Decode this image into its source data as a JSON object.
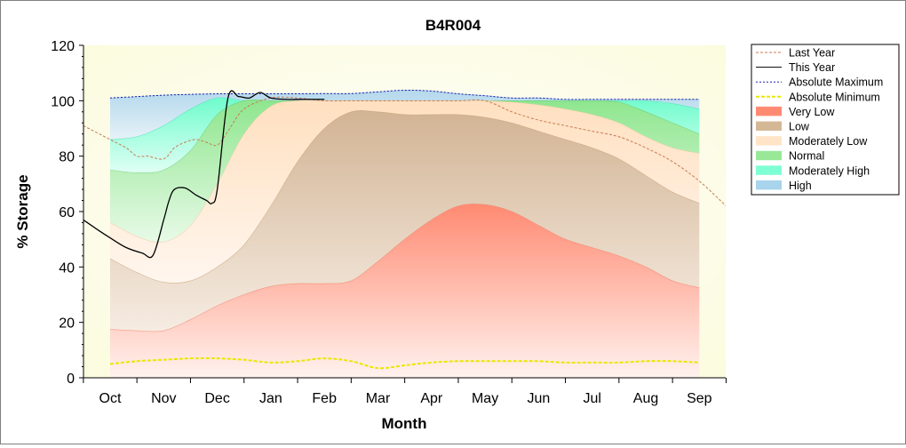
{
  "chart_data": {
    "type": "area",
    "title": "B4R004",
    "xlabel": "Month",
    "ylabel": "% Storage",
    "ylim": [
      0,
      120
    ],
    "yticks": [
      0,
      20,
      40,
      60,
      80,
      100,
      120
    ],
    "months": [
      "Oct",
      "Nov",
      "Dec",
      "Jan",
      "Feb",
      "Mar",
      "Apr",
      "May",
      "Jun",
      "Jul",
      "Aug",
      "Sep"
    ],
    "grid": false,
    "legend_position": "right",
    "bands": {
      "x": [
        0,
        0.5,
        1,
        1.5,
        2,
        2.5,
        3,
        3.5,
        4,
        4.5,
        5,
        5.5,
        6,
        6.5,
        7,
        7.5,
        8,
        8.5,
        9,
        9.5,
        10,
        10.5,
        11
      ],
      "very_low_top": [
        17.5,
        17,
        17,
        21,
        26,
        30,
        33,
        34,
        34,
        35,
        42,
        50,
        57,
        62,
        62.5,
        60,
        55,
        50,
        47,
        44,
        40,
        35,
        32.5
      ],
      "low_top": [
        43,
        38,
        34.5,
        35,
        40,
        48,
        62,
        78,
        90,
        96,
        96,
        95,
        95,
        95,
        94,
        92,
        89,
        86,
        83,
        79,
        73,
        67,
        63
      ],
      "moderately_low_top": [
        56,
        51,
        49,
        55,
        70,
        88,
        98,
        100,
        100,
        100,
        100,
        100,
        100,
        100,
        100,
        99.5,
        98.5,
        97,
        95,
        92,
        87,
        83,
        81
      ],
      "normal_top": [
        75,
        74,
        75,
        82,
        95,
        100,
        100,
        100,
        100,
        100,
        100,
        100,
        100,
        100,
        100,
        100,
        100,
        100,
        100,
        99.5,
        96,
        92,
        88
      ],
      "moderately_high_top": [
        86,
        87,
        91,
        97,
        101,
        100,
        100,
        100,
        100,
        100,
        100,
        100,
        100,
        100,
        100,
        100,
        100,
        100,
        100,
        100,
        100,
        99,
        97
      ],
      "high_top": [
        101,
        101.5,
        102,
        102.3,
        102.5,
        102.5,
        102.5,
        102.5,
        102.6,
        102.6,
        103.2,
        103.8,
        103.5,
        102.5,
        101.8,
        101,
        101,
        100.5,
        100.5,
        100.5,
        100.5,
        100.5,
        100.5
      ]
    },
    "series": [
      {
        "name": "Last Year",
        "x": [
          -0.5,
          0,
          0.3,
          0.5,
          0.7,
          1,
          1.2,
          1.4,
          1.6,
          1.8,
          2,
          2.2,
          2.5,
          3,
          3.5,
          4,
          4.5,
          5,
          5.5,
          6,
          6.5,
          7,
          7.5,
          8,
          8.5,
          9,
          9.5,
          10,
          10.5,
          11,
          11.5
        ],
        "y": [
          91,
          86,
          83,
          80,
          80,
          79,
          83,
          85,
          86,
          85,
          84,
          89,
          97,
          101,
          101,
          100,
          100,
          100,
          100,
          100,
          100,
          100,
          96,
          93,
          91,
          89,
          87,
          83,
          78,
          71,
          62
        ]
      },
      {
        "name": "This Year",
        "x": [
          -0.5,
          -0.2,
          0,
          0.3,
          0.6,
          0.8,
          1,
          1.1,
          1.2,
          1.4,
          1.6,
          1.8,
          1.9,
          2,
          2.2,
          2.4,
          2.6,
          2.8,
          3,
          3.3,
          3.6,
          4
        ],
        "y": [
          57,
          53,
          50.5,
          47,
          45,
          44.2,
          57,
          64,
          68,
          68.5,
          66,
          64,
          63,
          68,
          101,
          101.5,
          101,
          103,
          101,
          100.5,
          100.5,
          100.5
        ]
      },
      {
        "name": "Absolute Maximum",
        "x": [
          0,
          0.5,
          1,
          1.5,
          2,
          2.5,
          3,
          3.5,
          4,
          4.5,
          5,
          5.5,
          6,
          6.5,
          7,
          7.5,
          8,
          8.5,
          9,
          9.5,
          10,
          10.5,
          11
        ],
        "y": [
          101,
          101.5,
          102,
          102.3,
          102.5,
          102.5,
          102.5,
          102.5,
          102.6,
          102.6,
          103.2,
          103.8,
          103.5,
          102.5,
          101.8,
          101,
          101,
          100.5,
          100.5,
          100.5,
          100.5,
          100.5,
          100.5
        ]
      },
      {
        "name": "Absolute Minimum",
        "x": [
          0,
          0.5,
          1,
          1.5,
          2,
          2.5,
          3,
          3.5,
          4,
          4.5,
          5,
          5.5,
          6,
          6.5,
          7,
          7.5,
          8,
          8.5,
          9,
          9.5,
          10,
          10.5,
          11
        ],
        "y": [
          5,
          6,
          6.5,
          7,
          7,
          6.5,
          5.5,
          6,
          7,
          6,
          3.5,
          4.5,
          5.5,
          6,
          6,
          6,
          6,
          5.5,
          5.5,
          5.5,
          6,
          6,
          5.5
        ]
      }
    ],
    "legend": [
      {
        "label": "Last Year",
        "kind": "line",
        "color": "#c87a52",
        "dash": "3,2"
      },
      {
        "label": "This Year",
        "kind": "line",
        "color": "#000000",
        "dash": ""
      },
      {
        "label": "Absolute Maximum",
        "kind": "line",
        "color": "#1a1aaa",
        "dash": "2,2"
      },
      {
        "label": "Absolute Minimum",
        "kind": "line",
        "color": "#e8e800",
        "dash": "4,2"
      },
      {
        "label": "Very Low",
        "kind": "fill",
        "color": "#ff8a72"
      },
      {
        "label": "Low",
        "kind": "fill",
        "color": "#d4b896"
      },
      {
        "label": "Moderately Low",
        "kind": "fill",
        "color": "#ffe4c8"
      },
      {
        "label": "Normal",
        "kind": "fill",
        "color": "#98e898"
      },
      {
        "label": "Moderately High",
        "kind": "fill",
        "color": "#7fffd4"
      },
      {
        "label": "High",
        "kind": "fill",
        "color": "#a8d4ec"
      }
    ],
    "colors": {
      "plot_background": "#fdfde8",
      "very_low": "#ff8a72",
      "low": "#d4b896",
      "moderately_low": "#ffe4c8",
      "normal": "#98e898",
      "moderately_high": "#7fffd4",
      "high": "#a8d4ec"
    }
  }
}
